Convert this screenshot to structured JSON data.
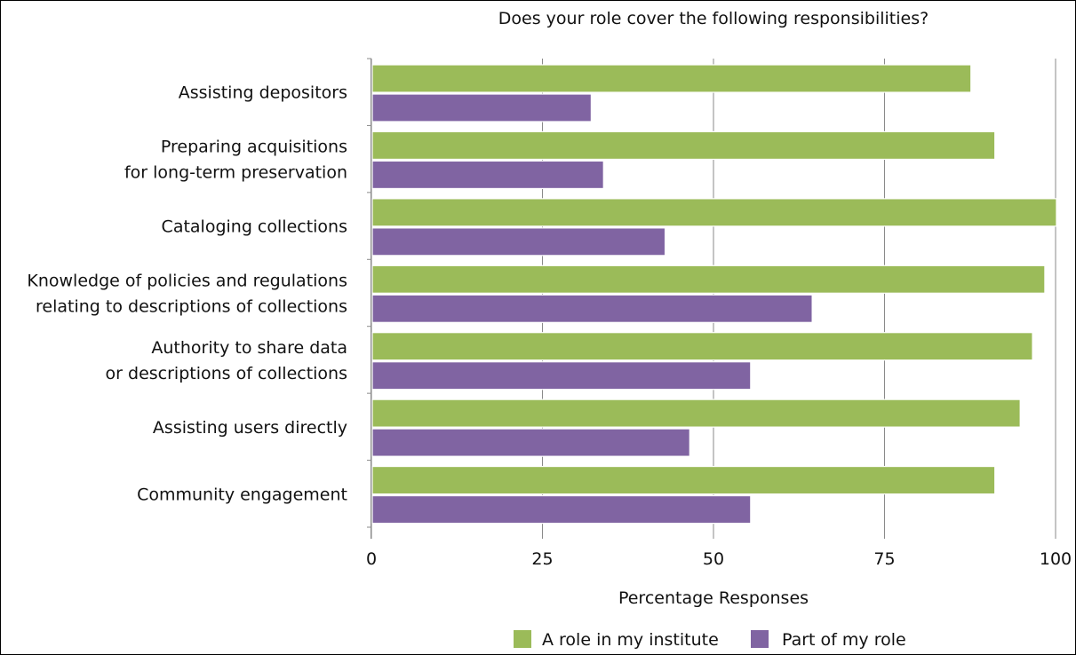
{
  "chart_data": {
    "type": "bar",
    "orientation": "horizontal",
    "title": "Does your role cover the following responsibilities?",
    "xlabel": "Percentage Responses",
    "ylabel": "",
    "xlim": [
      0,
      100
    ],
    "xticks": [
      0,
      25,
      50,
      75,
      100
    ],
    "grid": "vertical",
    "legend_position": "bottom",
    "categories": [
      [
        "Assisting depositors"
      ],
      [
        "Preparing acquisitions",
        "for long-term preservation"
      ],
      [
        "Cataloging collections"
      ],
      [
        "Knowledge of policies and regulations",
        "relating to descriptions of collections"
      ],
      [
        "Authority to share data",
        "or descriptions of collections"
      ],
      [
        "Assisting users directly"
      ],
      [
        "Community engagement"
      ]
    ],
    "series": [
      {
        "name": "A role in my institute",
        "color": "#9bbb59",
        "values": [
          87.5,
          91,
          100,
          98.3,
          96.5,
          94.7,
          91
        ]
      },
      {
        "name": "Part of my role",
        "color": "#8064a2",
        "values": [
          32,
          33.8,
          42.8,
          64.3,
          55.3,
          46.4,
          55.3
        ]
      }
    ]
  }
}
